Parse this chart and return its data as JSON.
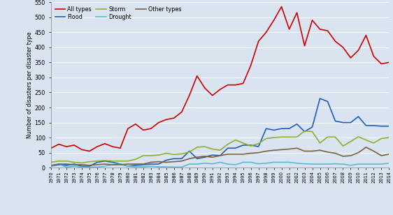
{
  "years": [
    1970,
    1971,
    1972,
    1973,
    1974,
    1975,
    1976,
    1977,
    1978,
    1979,
    1980,
    1981,
    1982,
    1983,
    1984,
    1985,
    1986,
    1987,
    1988,
    1989,
    1990,
    1991,
    1992,
    1993,
    1994,
    1995,
    1996,
    1997,
    1998,
    1999,
    2000,
    2001,
    2002,
    2003,
    2004,
    2005,
    2006,
    2007,
    2008,
    2009,
    2010,
    2011,
    2012,
    2013,
    2014
  ],
  "all_types": [
    65,
    78,
    70,
    75,
    60,
    55,
    70,
    80,
    70,
    65,
    130,
    145,
    125,
    130,
    150,
    160,
    165,
    185,
    240,
    305,
    265,
    240,
    260,
    275,
    275,
    280,
    340,
    420,
    450,
    490,
    535,
    460,
    515,
    405,
    490,
    460,
    455,
    420,
    400,
    365,
    390,
    440,
    370,
    345,
    350
  ],
  "flood": [
    5,
    10,
    8,
    12,
    5,
    5,
    18,
    22,
    18,
    12,
    5,
    8,
    10,
    12,
    12,
    25,
    30,
    30,
    55,
    30,
    35,
    42,
    40,
    65,
    65,
    75,
    75,
    70,
    130,
    125,
    130,
    130,
    145,
    120,
    135,
    230,
    220,
    155,
    150,
    150,
    170,
    140,
    140,
    138,
    138
  ],
  "storm": [
    18,
    22,
    22,
    18,
    16,
    20,
    22,
    24,
    22,
    22,
    22,
    28,
    40,
    40,
    42,
    48,
    44,
    46,
    52,
    68,
    70,
    62,
    58,
    78,
    92,
    82,
    72,
    80,
    97,
    100,
    102,
    102,
    102,
    122,
    120,
    82,
    102,
    102,
    72,
    87,
    103,
    92,
    82,
    97,
    100
  ],
  "drought": [
    5,
    12,
    2,
    5,
    2,
    2,
    2,
    5,
    10,
    12,
    5,
    3,
    3,
    5,
    3,
    3,
    2,
    2,
    12,
    12,
    15,
    13,
    18,
    12,
    10,
    18,
    18,
    13,
    15,
    18,
    18,
    18,
    15,
    13,
    12,
    12,
    12,
    13,
    12,
    8,
    12,
    12,
    12,
    12,
    15
  ],
  "other_types": [
    8,
    12,
    12,
    10,
    10,
    8,
    10,
    12,
    10,
    10,
    12,
    12,
    12,
    18,
    20,
    18,
    20,
    22,
    30,
    35,
    38,
    35,
    40,
    45,
    45,
    45,
    48,
    50,
    55,
    58,
    60,
    62,
    65,
    55,
    55,
    58,
    52,
    48,
    38,
    40,
    50,
    68,
    55,
    40,
    45
  ],
  "all_types_color": "#cc0000",
  "flood_color": "#1f5eb5",
  "storm_color": "#8fae30",
  "drought_color": "#5ab8d4",
  "other_types_color": "#7a6040",
  "background_color": "#d9e4f0",
  "ylabel": "Number of disasters per disaster type",
  "ylim": [
    0,
    550
  ],
  "yticks": [
    0,
    50,
    100,
    150,
    200,
    250,
    300,
    350,
    400,
    450,
    500,
    550
  ],
  "linewidth": 1.2
}
